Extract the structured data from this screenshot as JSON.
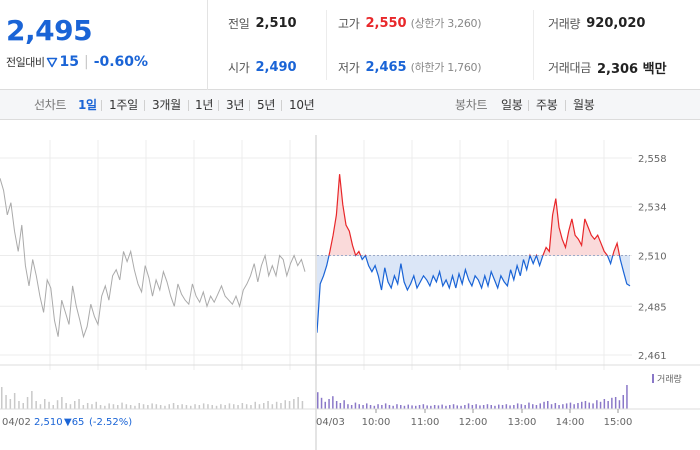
{
  "summary": {
    "current_price": "2,495",
    "change_label": "전일대비",
    "change_value": "15",
    "change_rate": "-0.60%",
    "prev_close": {
      "label": "전일",
      "value": "2,510"
    },
    "high": {
      "label": "고가",
      "value": "2,550",
      "limit_label": "(상한가 3,260)"
    },
    "volume": {
      "label": "거래량",
      "value": "920,020"
    },
    "open": {
      "label": "시가",
      "value": "2,490"
    },
    "low": {
      "label": "저가",
      "value": "2,465",
      "limit_label": "(하한가 1,760)"
    },
    "amount": {
      "label": "거래대금",
      "value": "2,306 백만"
    }
  },
  "toolbar": {
    "line_chart_label": "선차트",
    "line_tabs": [
      "1일",
      "1주일",
      "3개월",
      "1년",
      "3년",
      "5년",
      "10년"
    ],
    "active_line_tab": "1일",
    "candle_chart_label": "봉차트",
    "candle_tabs": [
      "일봉",
      "주봉",
      "월봉"
    ]
  },
  "colors": {
    "up": "#e8272a",
    "down": "#1a64d6",
    "prev_day_line": "#aaaaaa",
    "volume_bar": "#8a78c8"
  },
  "chart_data": {
    "type": "line",
    "y_ticks": [
      "2,558",
      "2,534",
      "2,510",
      "2,485",
      "2,461"
    ],
    "ylim": [
      2461,
      2558
    ],
    "baseline": 2510,
    "x_ticks": [
      "10:00",
      "11:00",
      "12:00",
      "13:00",
      "14:00",
      "15:00"
    ],
    "prev_day_date": "04/02",
    "prev_day_close": "2,510",
    "prev_day_change": "▼65",
    "prev_day_change_rate": "(-2.52%)",
    "today_date": "04/03",
    "volume_label": "거래량",
    "grid": true,
    "series": [
      {
        "values": [
          2548,
          2542,
          2530,
          2536,
          2522,
          2512,
          2525,
          2505,
          2495,
          2508,
          2500,
          2490,
          2482,
          2498,
          2494,
          2478,
          2470,
          2488,
          2482,
          2476,
          2495,
          2485,
          2478,
          2470,
          2475,
          2486,
          2480,
          2476,
          2490,
          2495,
          2488,
          2500,
          2503,
          2498,
          2512,
          2507,
          2512,
          2503,
          2496,
          2492,
          2505,
          2499,
          2490,
          2498,
          2493,
          2502,
          2497,
          2490,
          2485,
          2496,
          2491,
          2488,
          2486,
          2496,
          2490,
          2487,
          2492,
          2485,
          2490,
          2487,
          2491,
          2495,
          2490,
          2488,
          2486,
          2490,
          2485,
          2493,
          2496,
          2500,
          2506,
          2497,
          2505,
          2510,
          2500,
          2505,
          2500,
          2510,
          2508,
          2500,
          2506,
          2510,
          2505,
          2508,
          2502
        ]
      },
      {
        "values": [
          2472,
          2496,
          2500,
          2505,
          2512,
          2520,
          2530,
          2550,
          2535,
          2525,
          2522,
          2515,
          2510,
          2512,
          2508,
          2510,
          2505,
          2502,
          2505,
          2500,
          2493,
          2504,
          2497,
          2494,
          2500,
          2496,
          2506,
          2497,
          2493,
          2496,
          2500,
          2494,
          2497,
          2500,
          2498,
          2495,
          2500,
          2497,
          2502,
          2495,
          2498,
          2494,
          2500,
          2494,
          2501,
          2496,
          2503,
          2498,
          2495,
          2500,
          2498,
          2494,
          2500,
          2495,
          2502,
          2498,
          2494,
          2500,
          2497,
          2495,
          2503,
          2498,
          2505,
          2500,
          2508,
          2503,
          2510,
          2506,
          2510,
          2505,
          2510,
          2514,
          2512,
          2530,
          2538,
          2524,
          2518,
          2514,
          2522,
          2528,
          2520,
          2518,
          2515,
          2528,
          2524,
          2520,
          2518,
          2520,
          2516,
          2512,
          2510,
          2506,
          2512,
          2516,
          2508,
          2502,
          2496,
          2495
        ]
      }
    ],
    "volume": {
      "prev_day": [
        0.55,
        0.35,
        0.25,
        0.4,
        0.2,
        0.15,
        0.3,
        0.45,
        0.2,
        0.12,
        0.25,
        0.18,
        0.1,
        0.22,
        0.3,
        0.15,
        0.12,
        0.2,
        0.25,
        0.1,
        0.15,
        0.12,
        0.18,
        0.1,
        0.08,
        0.14,
        0.12,
        0.1,
        0.16,
        0.12,
        0.1,
        0.08,
        0.15,
        0.12,
        0.1,
        0.14,
        0.12,
        0.1,
        0.08,
        0.12,
        0.15,
        0.1,
        0.12,
        0.1,
        0.08,
        0.12,
        0.1,
        0.14,
        0.12,
        0.1,
        0.08,
        0.12,
        0.1,
        0.14,
        0.12,
        0.1,
        0.15,
        0.12,
        0.1,
        0.18,
        0.12,
        0.15,
        0.2,
        0.12,
        0.18,
        0.15,
        0.22,
        0.2,
        0.25,
        0.3,
        0.2
      ],
      "today": [
        0.42,
        0.28,
        0.18,
        0.25,
        0.32,
        0.2,
        0.15,
        0.22,
        0.12,
        0.1,
        0.16,
        0.12,
        0.1,
        0.14,
        0.1,
        0.08,
        0.12,
        0.1,
        0.14,
        0.1,
        0.08,
        0.12,
        0.1,
        0.08,
        0.11,
        0.09,
        0.08,
        0.1,
        0.12,
        0.09,
        0.08,
        0.1,
        0.09,
        0.11,
        0.08,
        0.1,
        0.12,
        0.09,
        0.08,
        0.1,
        0.14,
        0.1,
        0.12,
        0.09,
        0.1,
        0.12,
        0.1,
        0.08,
        0.11,
        0.1,
        0.12,
        0.09,
        0.1,
        0.14,
        0.12,
        0.1,
        0.16,
        0.12,
        0.1,
        0.14,
        0.18,
        0.2,
        0.12,
        0.15,
        0.1,
        0.12,
        0.14,
        0.16,
        0.12,
        0.15,
        0.18,
        0.2,
        0.16,
        0.14,
        0.22,
        0.18,
        0.25,
        0.2,
        0.28,
        0.3,
        0.22,
        0.35,
        0.6
      ]
    }
  }
}
